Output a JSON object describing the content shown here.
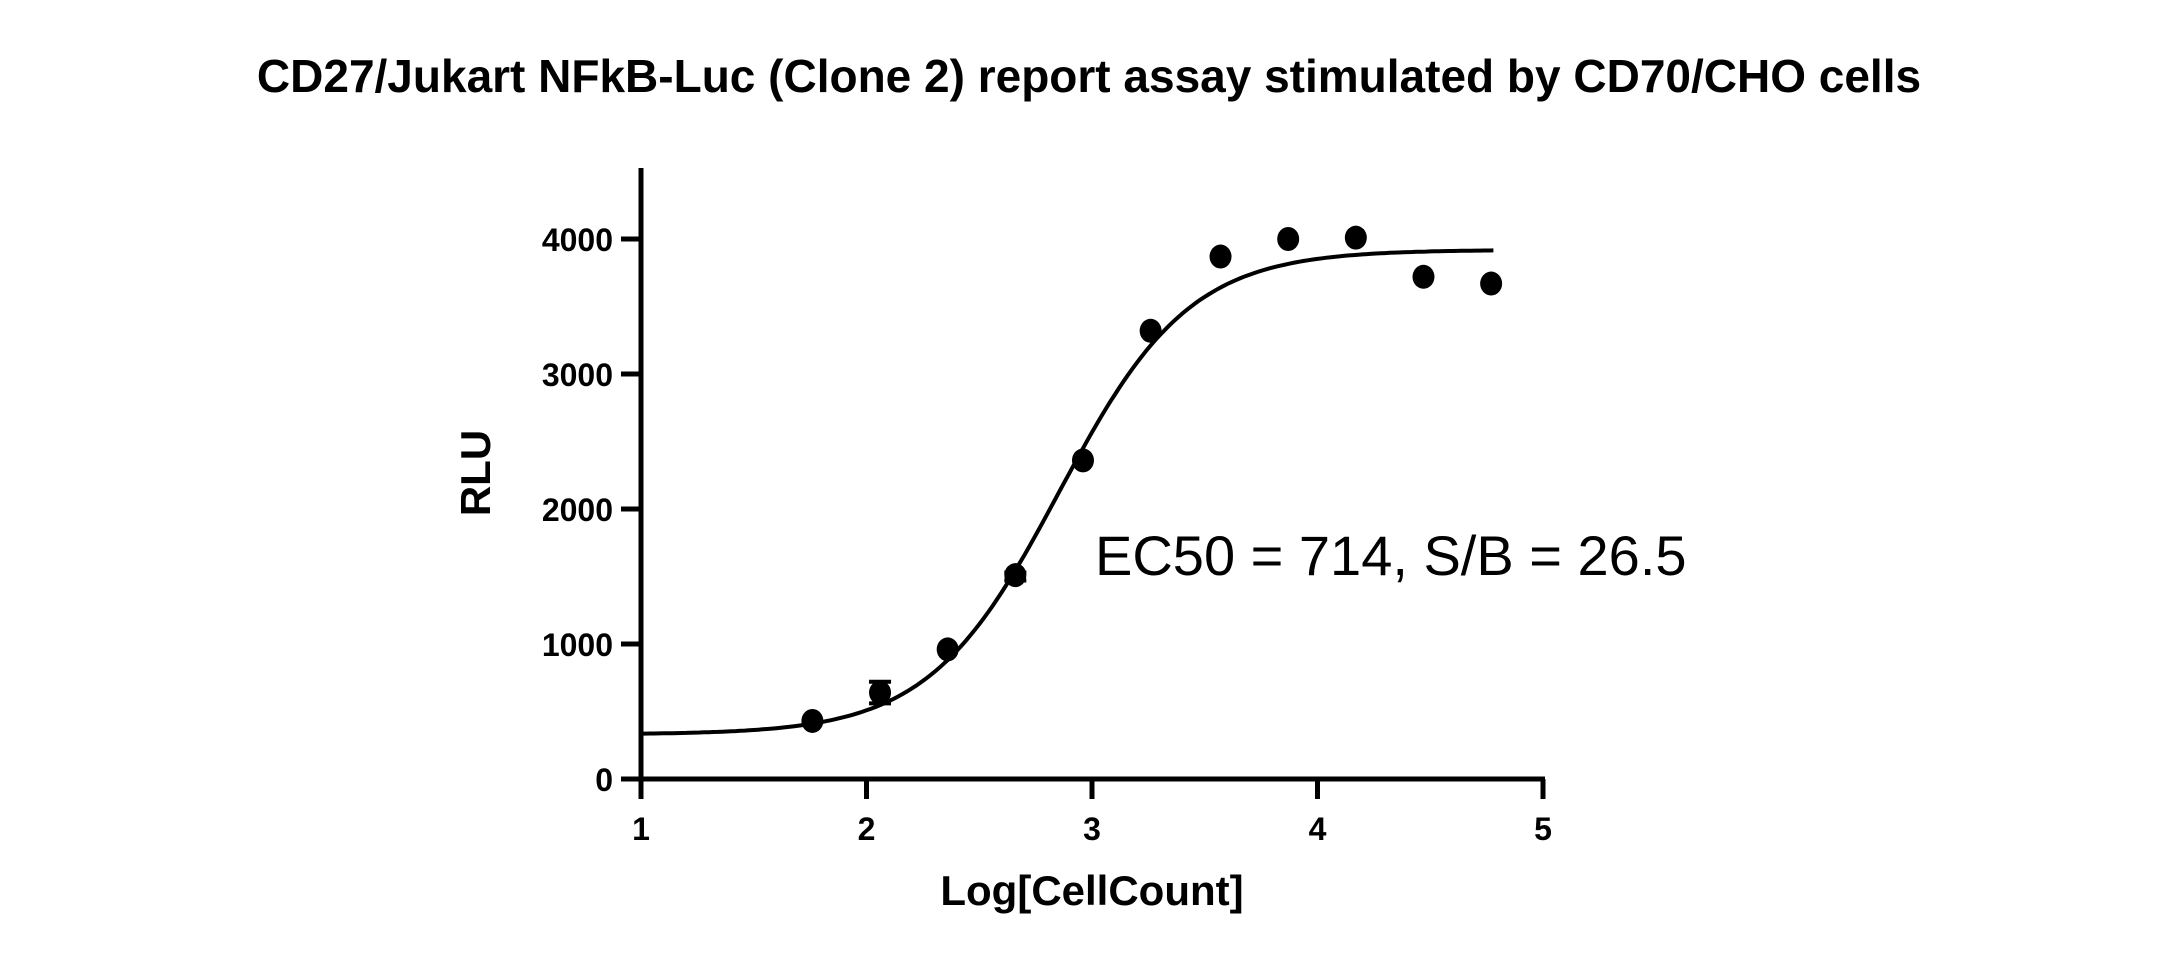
{
  "chart_data": {
    "type": "scatter",
    "title": "CD27/Jukart NFkB-Luc (Clone 2) report assay stimulated by CD70/CHO cells",
    "xlabel": "Log[CellCount]",
    "ylabel": "RLU",
    "xlim": [
      1,
      5
    ],
    "ylim": [
      0,
      4500
    ],
    "xticks": [
      "1",
      "2",
      "3",
      "4",
      "5"
    ],
    "yticks": [
      "0",
      "1000",
      "2000",
      "3000",
      "4000"
    ],
    "xtick_values": [
      1,
      2,
      3,
      4,
      5
    ],
    "ytick_values": [
      0,
      1000,
      2000,
      3000,
      4000
    ],
    "grid": false,
    "points": [
      {
        "x": 1.76,
        "y": 430
      },
      {
        "x": 2.06,
        "y": 640,
        "err_low": 560,
        "err_high": 720
      },
      {
        "x": 2.36,
        "y": 960
      },
      {
        "x": 2.66,
        "y": 1510,
        "err_low": 1470,
        "err_high": 1530
      },
      {
        "x": 2.96,
        "y": 2360
      },
      {
        "x": 3.26,
        "y": 3320
      },
      {
        "x": 3.57,
        "y": 3870
      },
      {
        "x": 3.87,
        "y": 4000
      },
      {
        "x": 4.17,
        "y": 4010
      },
      {
        "x": 4.47,
        "y": 3720
      },
      {
        "x": 4.77,
        "y": 3670
      }
    ],
    "fit": {
      "model": "4PL sigmoidal",
      "bottom": 330,
      "top": 3920,
      "logEC50": 2.854,
      "hill": 1.5,
      "x_range": [
        1,
        4.78
      ]
    },
    "annotation": "EC50 = 714, S/B = 26.5"
  }
}
